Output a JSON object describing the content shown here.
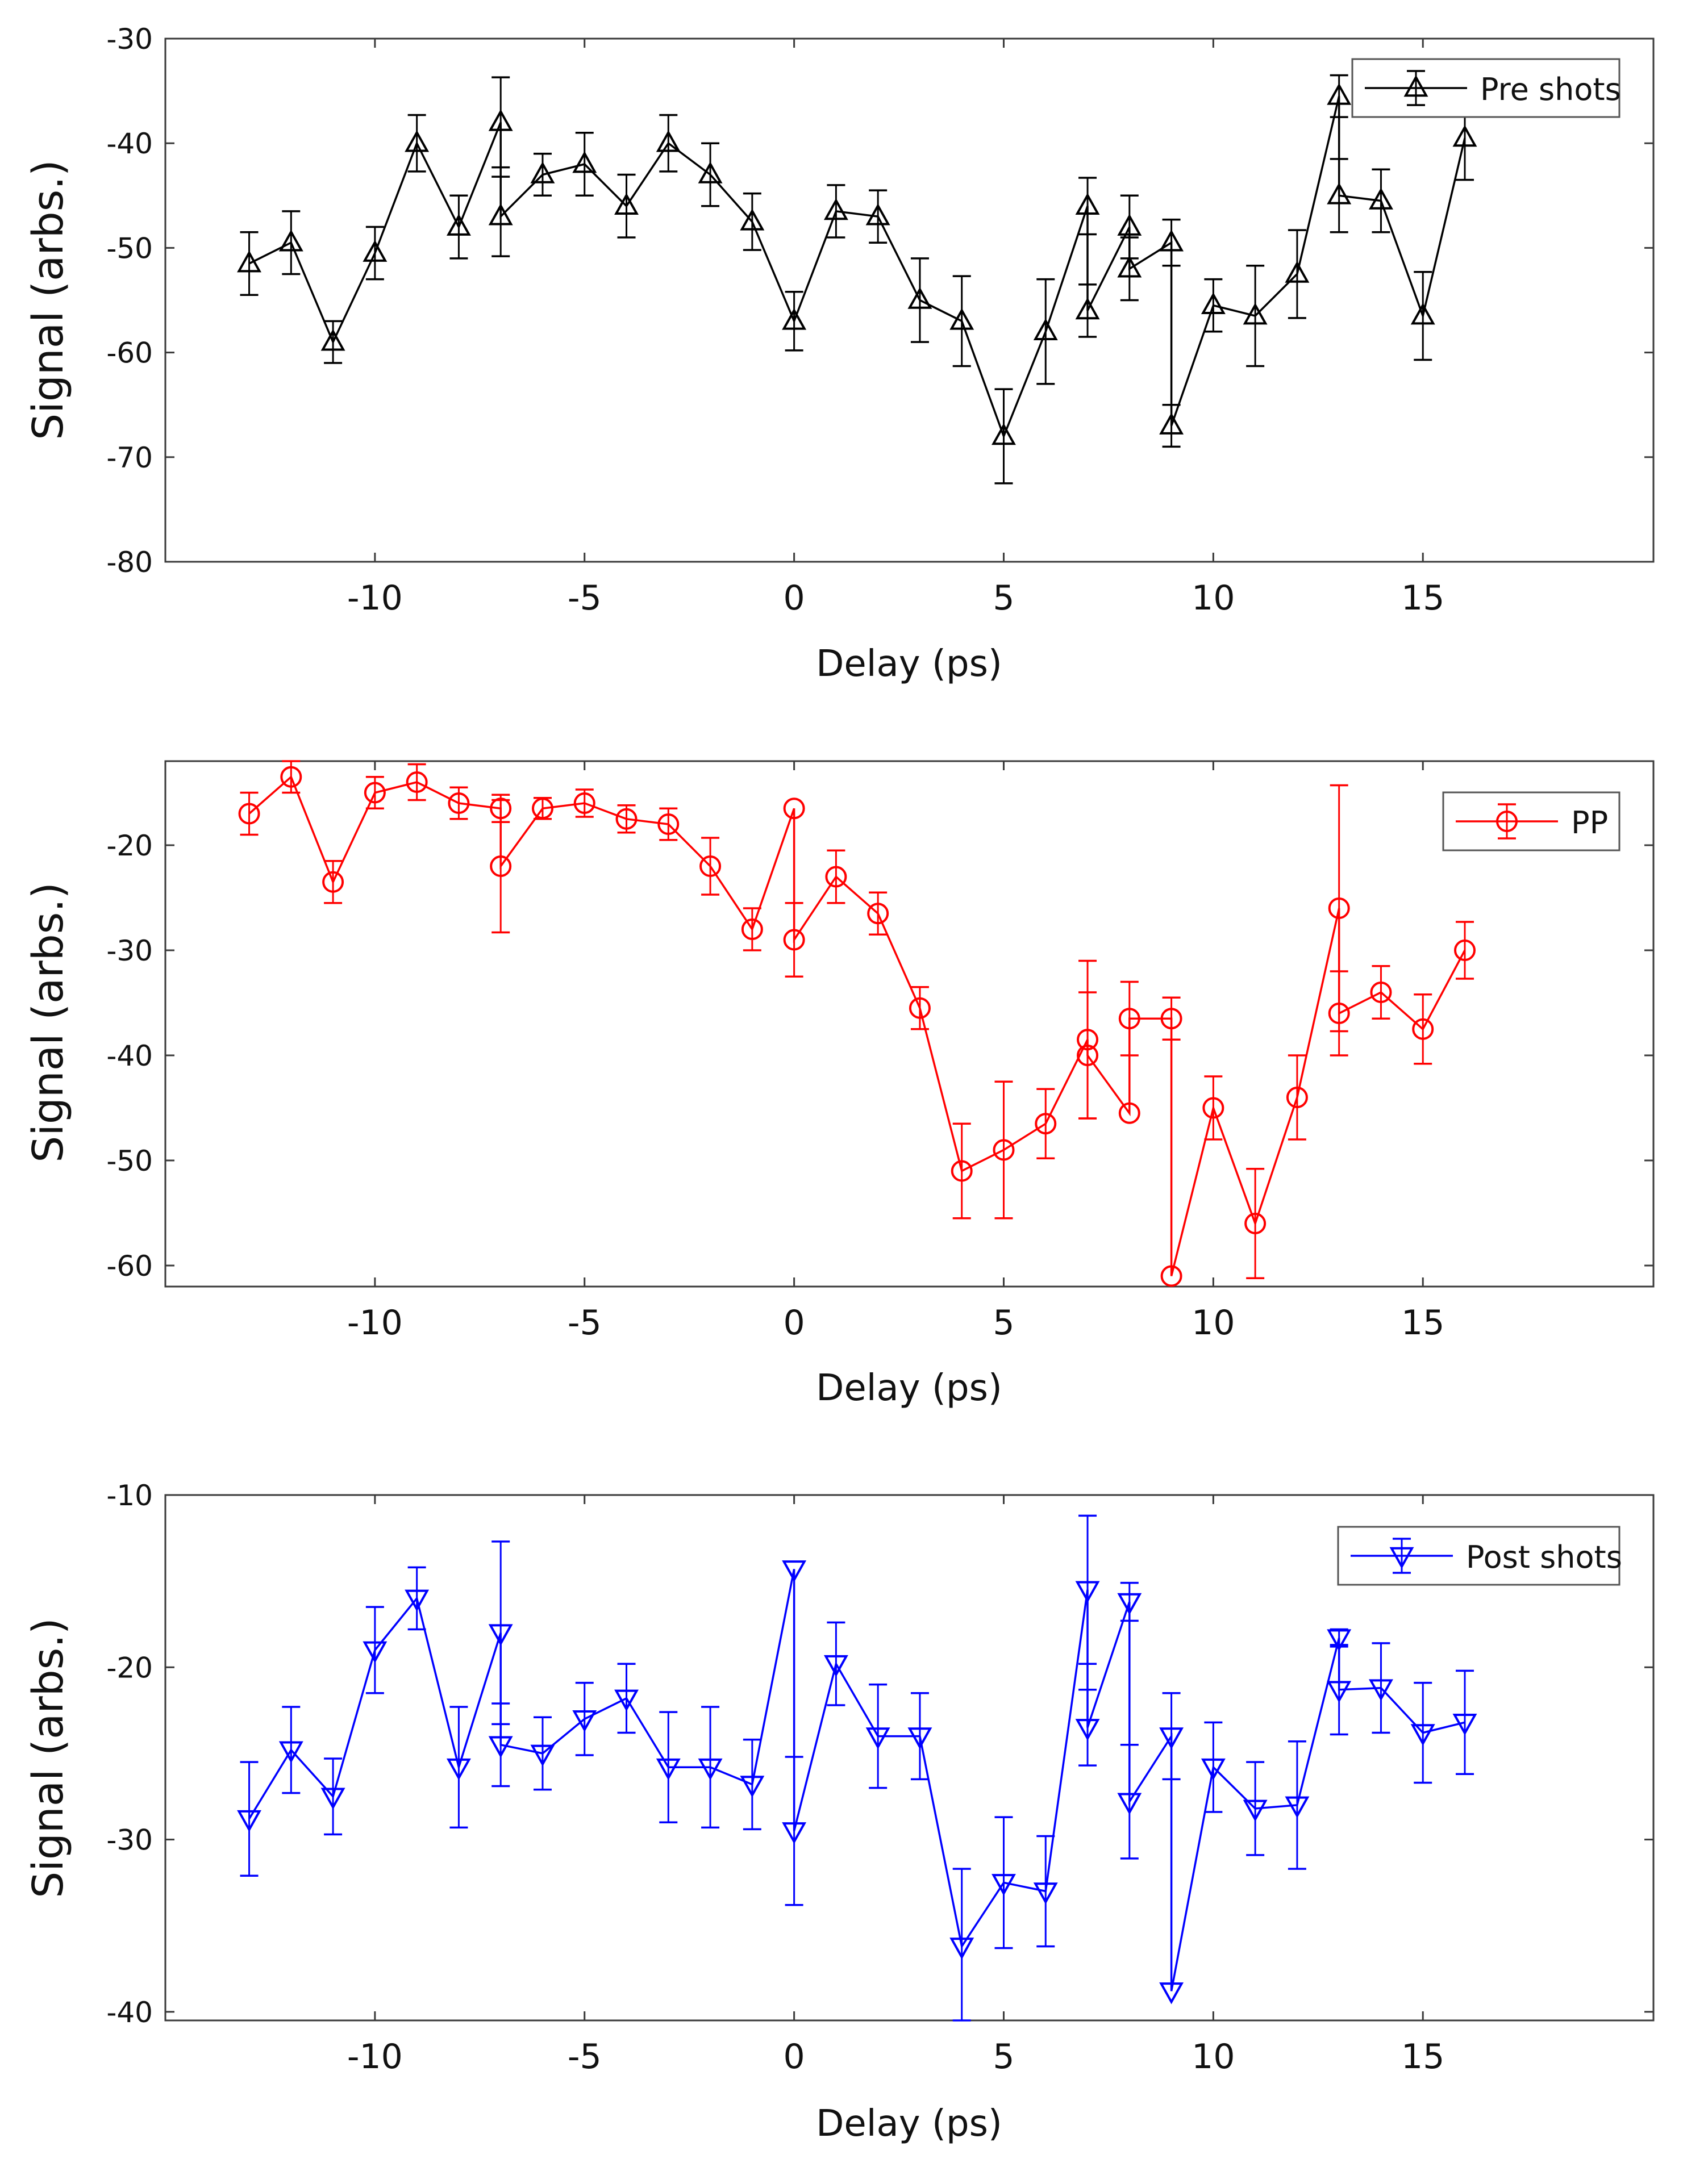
{
  "chart_data": [
    {
      "type": "line",
      "xlabel": "Delay (ps)",
      "ylabel": "Signal (arbs.)",
      "xlim": [
        -15,
        20.5
      ],
      "ylim": [
        -80,
        -30
      ],
      "xticks": [
        -10,
        -5,
        0,
        5,
        10,
        15
      ],
      "xtick_labels": [
        "-10",
        "-5",
        "0",
        "5",
        "10",
        "15"
      ],
      "yticks": [
        -80,
        -70,
        -60,
        -50,
        -40,
        -30
      ],
      "ytick_labels": [
        "-80",
        "-70",
        "-60",
        "-50",
        "-40",
        "-30"
      ],
      "grid": false,
      "legend_position": "top-right",
      "series": [
        {
          "name": "Pre shots",
          "color": "#000000",
          "marker": "triangle-up",
          "x": [
            -13,
            -12,
            -11,
            -10,
            -9,
            -8,
            -7,
            -7,
            -6,
            -5,
            -4,
            -3,
            -2,
            -1,
            0,
            1,
            2,
            3,
            4,
            5,
            6,
            7,
            7,
            8,
            8,
            9,
            9,
            10,
            11,
            12,
            13,
            13,
            14,
            15,
            16
          ],
          "y": [
            -51.5,
            -49.5,
            -59,
            -50.5,
            -40,
            -48,
            -38,
            -47,
            -43,
            -42,
            -46,
            -40,
            -43,
            -47.5,
            -57,
            -46.5,
            -47,
            -55,
            -57,
            -68,
            -58,
            -46,
            -56,
            -48,
            -52,
            -49.5,
            -67,
            -55.5,
            -56.5,
            -52.5,
            -35.5,
            -45,
            -45.5,
            -56.5,
            -39.5
          ],
          "error": [
            3,
            3,
            2,
            2.5,
            2.7,
            3,
            4.3,
            3.8,
            2,
            3,
            3,
            2.7,
            3,
            2.7,
            2.8,
            2.5,
            2.5,
            4,
            4.3,
            4.5,
            5,
            2.7,
            2.5,
            3,
            3,
            2.2,
            2,
            2.5,
            4.8,
            4.2,
            2,
            3.5,
            3,
            4.2,
            4
          ]
        }
      ]
    },
    {
      "type": "line",
      "xlabel": "Delay (ps)",
      "ylabel": "Signal (arbs.)",
      "xlim": [
        -15,
        20.5
      ],
      "ylim": [
        -62,
        -12
      ],
      "xticks": [
        -10,
        -5,
        0,
        5,
        10,
        15
      ],
      "xtick_labels": [
        "-10",
        "-5",
        "0",
        "5",
        "10",
        "15"
      ],
      "yticks": [
        -60,
        -50,
        -40,
        -30,
        -20
      ],
      "ytick_labels": [
        "-60",
        "-50",
        "-40",
        "-30",
        "-20"
      ],
      "grid": false,
      "legend_position": "top-right",
      "series": [
        {
          "name": "PP",
          "color": "#ff0000",
          "marker": "circle",
          "x": [
            -13,
            -12,
            -11,
            -10,
            -9,
            -8,
            -7,
            -7,
            -6,
            -5,
            -4,
            -3,
            -2,
            -1,
            0,
            0,
            1,
            2,
            3,
            4,
            5,
            6,
            7,
            7,
            8,
            8,
            9,
            9,
            10,
            11,
            12,
            13,
            13,
            14,
            15,
            16
          ],
          "y": [
            -17,
            -13.5,
            -23.5,
            -15,
            -14,
            -16,
            -16.5,
            -22,
            -16.5,
            -16,
            -17.5,
            -18,
            -22,
            -28,
            -16.5,
            -29,
            -23,
            -26.5,
            -35.5,
            -51,
            -49,
            -46.5,
            -38.5,
            -40,
            -45.5,
            -36.5,
            -36.5,
            -61,
            -45,
            -56,
            -44,
            -26,
            -36,
            -34,
            -37.5,
            -30
          ],
          "error": [
            2,
            1.5,
            2,
            1.5,
            1.7,
            1.5,
            1.3,
            6.3,
            1,
            1.3,
            1.3,
            1.5,
            2.7,
            2,
            0,
            3.5,
            2.5,
            2,
            2,
            4.5,
            6.5,
            3.3,
            7.5,
            6,
            0,
            3.5,
            2,
            0,
            3,
            5.2,
            4,
            11.7,
            4,
            2.5,
            3.3,
            2.7
          ]
        }
      ]
    },
    {
      "type": "line",
      "xlabel": "Delay (ps)",
      "ylabel": "Signal (arbs.)",
      "xlim": [
        -15,
        20.5
      ],
      "ylim": [
        -40.5,
        -10
      ],
      "xticks": [
        -10,
        -5,
        0,
        5,
        10,
        15
      ],
      "xtick_labels": [
        "-10",
        "-5",
        "0",
        "5",
        "10",
        "15"
      ],
      "yticks": [
        -40,
        -30,
        -20,
        -10
      ],
      "ytick_labels": [
        "-40",
        "-30",
        "-20",
        "-10"
      ],
      "grid": false,
      "legend_position": "top-right",
      "series": [
        {
          "name": "Post shots",
          "color": "#0000ff",
          "marker": "triangle-down",
          "x": [
            -13,
            -12,
            -11,
            -10,
            -9,
            -8,
            -7,
            -7,
            -6,
            -5,
            -4,
            -3,
            -2,
            -1,
            0,
            0,
            1,
            2,
            3,
            4,
            5,
            6,
            7,
            7,
            8,
            8,
            9,
            9,
            10,
            11,
            12,
            13,
            13,
            14,
            15,
            16
          ],
          "y": [
            -28.8,
            -24.8,
            -27.5,
            -19,
            -16,
            -25.8,
            -18,
            -24.5,
            -25,
            -23,
            -21.8,
            -25.8,
            -25.8,
            -26.8,
            -14.3,
            -29.5,
            -19.8,
            -24,
            -24,
            -36.2,
            -32.5,
            -33,
            -15.5,
            -23.5,
            -16.2,
            -27.8,
            -24,
            -38.8,
            -25.8,
            -28.2,
            -28,
            -18.3,
            -21.3,
            -21.2,
            -23.8,
            -23.2
          ],
          "error": [
            3.3,
            2.5,
            2.2,
            2.5,
            1.8,
            3.5,
            5.3,
            2.4,
            2.1,
            2.1,
            2,
            3.2,
            3.5,
            2.6,
            0,
            4.3,
            2.4,
            3,
            2.5,
            4.5,
            3.8,
            3.2,
            4.3,
            2.2,
            1.1,
            3.3,
            2.5,
            0,
            2.6,
            2.7,
            3.7,
            0.5,
            2.6,
            2.6,
            2.9,
            3
          ]
        }
      ]
    }
  ]
}
